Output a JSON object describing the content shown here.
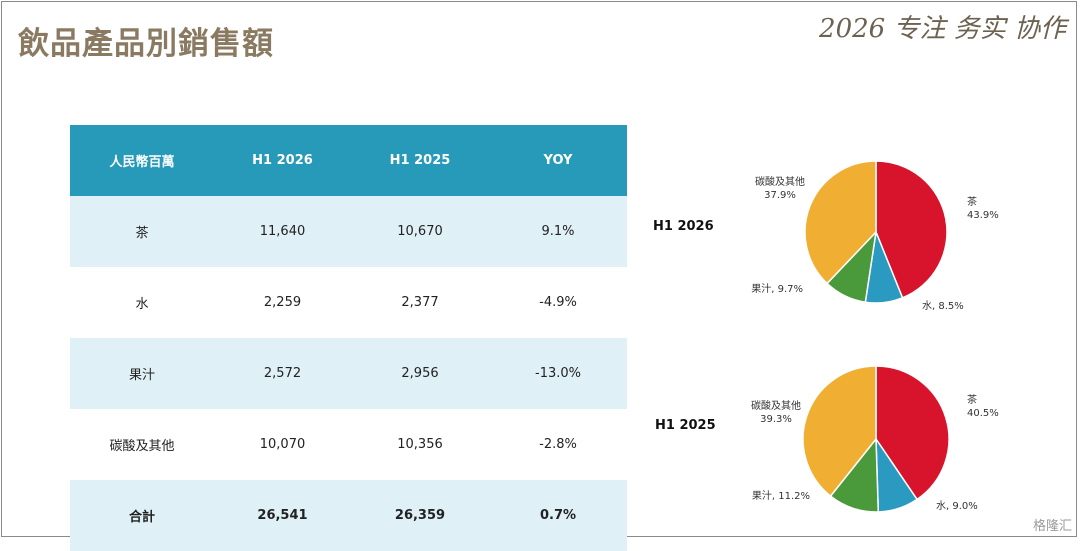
{
  "header": {
    "title": "飲品產品別銷售額",
    "slogan": "2026 专注 务实 协作"
  },
  "table": {
    "headers": [
      "人民幣百萬",
      "H1 2026",
      "H1 2025",
      "YOY"
    ],
    "rows": [
      [
        "茶",
        "11,640",
        "10,670",
        "9.1%"
      ],
      [
        "水",
        "2,259",
        "2,377",
        "-4.9%"
      ],
      [
        "果汁",
        "2,572",
        "2,956",
        "-13.0%"
      ],
      [
        "碳酸及其他",
        "10,070",
        "10,356",
        "-2.8%"
      ],
      [
        "合計",
        "26,541",
        "26,359",
        "0.7%"
      ]
    ]
  },
  "watermark": "格隆汇",
  "colors": {
    "tea": "#d7142b",
    "water": "#2a9ac0",
    "juice": "#4a9a3c",
    "carbonated": "#f0af33",
    "header_bg": "#2799b9",
    "row_shade": "#dff0f6"
  },
  "chart_data": [
    {
      "type": "pie",
      "title": "H1 2026",
      "labels": [
        "茶",
        "水",
        "果汁",
        "碳酸及其他"
      ],
      "values": [
        43.9,
        8.5,
        9.7,
        37.9
      ],
      "slice_labels": [
        [
          "茶",
          "43.9%"
        ],
        [
          "水, 8.5%"
        ],
        [
          "果汁, 9.7%"
        ],
        [
          "碳酸及其他",
          "37.9%"
        ]
      ]
    },
    {
      "type": "pie",
      "title": "H1 2025",
      "labels": [
        "茶",
        "水",
        "果汁",
        "碳酸及其他"
      ],
      "values": [
        40.5,
        9.0,
        11.2,
        39.3
      ],
      "slice_labels": [
        [
          "茶",
          "40.5%"
        ],
        [
          "水, 9.0%"
        ],
        [
          "果汁, 11.2%"
        ],
        [
          "碳酸及其他",
          "39.3%"
        ]
      ]
    }
  ]
}
